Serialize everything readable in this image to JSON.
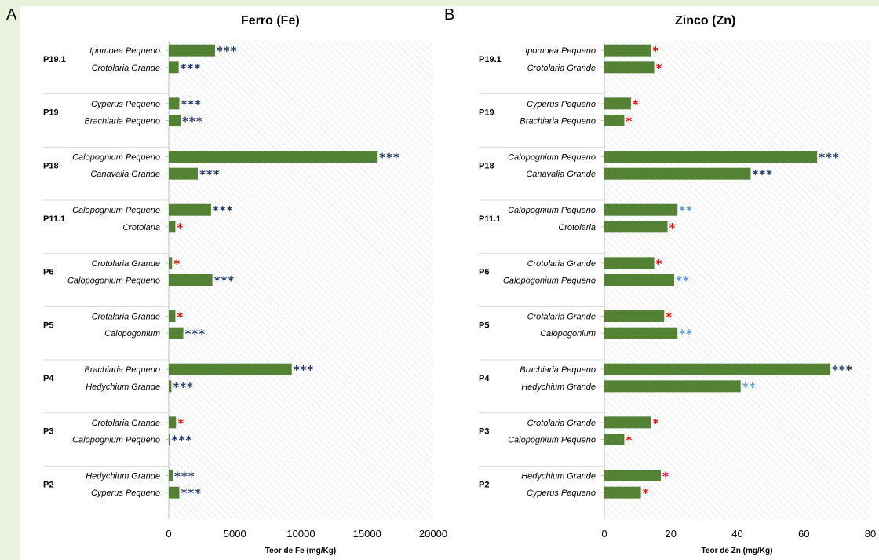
{
  "chart_data": [
    {
      "type": "bar",
      "orientation": "horizontal",
      "panel_letter": "A",
      "title": "Ferro (Fe)",
      "xlabel": "Teor de Fe (mg/Kg)",
      "xlim": [
        0,
        20000
      ],
      "xticks": [
        "0",
        "5000",
        "10000",
        "15000",
        "20000"
      ],
      "grid": false,
      "background_hatch": true,
      "bar_color": "#548235",
      "groups": [
        {
          "label": "P19.1",
          "items": [
            {
              "label": "Ipomoea Pequeno",
              "value": 3500,
              "sig": "***",
              "sig_color": "#1f3864"
            },
            {
              "label": "Crotolaria Grande",
              "value": 750,
              "sig": "***",
              "sig_color": "#1f3864"
            }
          ]
        },
        {
          "label": "P19",
          "items": [
            {
              "label": "Cyperus Pequeno",
              "value": 800,
              "sig": "***",
              "sig_color": "#1f3864"
            },
            {
              "label": "Brachiaria Pequeno",
              "value": 900,
              "sig": "***",
              "sig_color": "#1f3864"
            }
          ]
        },
        {
          "label": "P18",
          "items": [
            {
              "label": "Calopognium Pequeno",
              "value": 15800,
              "sig": "***",
              "sig_color": "#1f3864"
            },
            {
              "label": "Canavalia Grande",
              "value": 2200,
              "sig": "***",
              "sig_color": "#1f3864"
            }
          ]
        },
        {
          "label": "P11.1",
          "items": [
            {
              "label": "Calopognium Pequeno",
              "value": 3200,
              "sig": "***",
              "sig_color": "#1f3864"
            },
            {
              "label": "Crotolaria",
              "value": 500,
              "sig": "*",
              "sig_color": "#ff0000"
            }
          ]
        },
        {
          "label": "P6",
          "items": [
            {
              "label": "Crotolaria Grande",
              "value": 250,
              "sig": "*",
              "sig_color": "#ff0000"
            },
            {
              "label": "Calopogonium Pequeno",
              "value": 3300,
              "sig": "***",
              "sig_color": "#1f3864"
            }
          ]
        },
        {
          "label": "P5",
          "items": [
            {
              "label": "Crotalaria Grande",
              "value": 500,
              "sig": "*",
              "sig_color": "#ff0000"
            },
            {
              "label": "Calopogonium",
              "value": 1100,
              "sig": "***",
              "sig_color": "#1f3864"
            }
          ]
        },
        {
          "label": "P4",
          "items": [
            {
              "label": "Brachiaria Pequeno",
              "value": 9300,
              "sig": "***",
              "sig_color": "#1f3864"
            },
            {
              "label": "Hedychium Grande",
              "value": 200,
              "sig": "***",
              "sig_color": "#1f3864"
            }
          ]
        },
        {
          "label": "P3",
          "items": [
            {
              "label": "Crotolaria Grande",
              "value": 550,
              "sig": "*",
              "sig_color": "#ff0000"
            },
            {
              "label": "Calopognium Pequeno",
              "value": 100,
              "sig": "***",
              "sig_color": "#1f3864"
            }
          ]
        },
        {
          "label": "P2",
          "items": [
            {
              "label": "Hedychium Grande",
              "value": 300,
              "sig": "***",
              "sig_color": "#1f3864"
            },
            {
              "label": "Cyperus Pequeno",
              "value": 800,
              "sig": "***",
              "sig_color": "#1f3864"
            }
          ]
        }
      ]
    },
    {
      "type": "bar",
      "orientation": "horizontal",
      "panel_letter": "B",
      "title": "Zinco (Zn)",
      "xlabel": "Teor de Zn (mg/Kg)",
      "xlim": [
        0,
        80
      ],
      "xticks": [
        "0",
        "20",
        "40",
        "60",
        "80"
      ],
      "grid": false,
      "background_hatch": true,
      "bar_color": "#548235",
      "groups": [
        {
          "label": "P19.1",
          "items": [
            {
              "label": "Ipomoea Pequeno",
              "value": 14,
              "sig": "*",
              "sig_color": "#ff0000"
            },
            {
              "label": "Crotolaria Grande",
              "value": 15,
              "sig": "*",
              "sig_color": "#ff0000"
            }
          ]
        },
        {
          "label": "P19",
          "items": [
            {
              "label": "Cyperus Pequeno",
              "value": 8,
              "sig": "*",
              "sig_color": "#ff0000"
            },
            {
              "label": "Brachiaria Pequeno",
              "value": 6,
              "sig": "*",
              "sig_color": "#ff0000"
            }
          ]
        },
        {
          "label": "P18",
          "items": [
            {
              "label": "Calopognium Pequeno",
              "value": 64,
              "sig": "***",
              "sig_color": "#1f3864"
            },
            {
              "label": "Canavalia Grande",
              "value": 44,
              "sig": "***",
              "sig_color": "#1f3864"
            }
          ]
        },
        {
          "label": "P11.1",
          "items": [
            {
              "label": "Calopognium Pequeno",
              "value": 22,
              "sig": "**",
              "sig_color": "#5b9bd5"
            },
            {
              "label": "Crotolaria",
              "value": 19,
              "sig": "*",
              "sig_color": "#ff0000"
            }
          ]
        },
        {
          "label": "P6",
          "items": [
            {
              "label": "Crotolaria Grande",
              "value": 15,
              "sig": "*",
              "sig_color": "#ff0000"
            },
            {
              "label": "Calopogonium Pequeno",
              "value": 21,
              "sig": "**",
              "sig_color": "#5b9bd5"
            }
          ]
        },
        {
          "label": "P5",
          "items": [
            {
              "label": "Crotalaria Grande",
              "value": 18,
              "sig": "*",
              "sig_color": "#ff0000"
            },
            {
              "label": "Calopogonium",
              "value": 22,
              "sig": "**",
              "sig_color": "#5b9bd5"
            }
          ]
        },
        {
          "label": "P4",
          "items": [
            {
              "label": "Brachiaria Pequeno",
              "value": 68,
              "sig": "***",
              "sig_color": "#1f3864"
            },
            {
              "label": "Hedychium Grande",
              "value": 41,
              "sig": "**",
              "sig_color": "#5b9bd5"
            }
          ]
        },
        {
          "label": "P3",
          "items": [
            {
              "label": "Crotolaria Grande",
              "value": 14,
              "sig": "*",
              "sig_color": "#ff0000"
            },
            {
              "label": "Calopognium Pequeno",
              "value": 6,
              "sig": "*",
              "sig_color": "#ff0000"
            }
          ]
        },
        {
          "label": "P2",
          "items": [
            {
              "label": "Hedychium Grande",
              "value": 17,
              "sig": "*",
              "sig_color": "#ff0000"
            },
            {
              "label": "Cyperus Pequeno",
              "value": 11,
              "sig": "*",
              "sig_color": "#ff0000"
            }
          ]
        }
      ]
    }
  ]
}
